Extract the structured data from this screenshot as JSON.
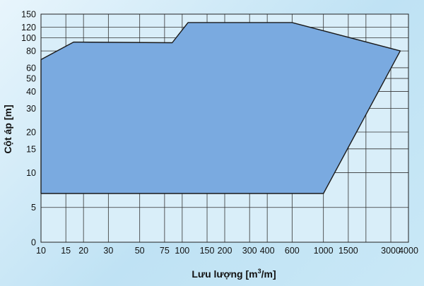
{
  "chart_data": {
    "type": "area",
    "xlabel": "Lưu lượng [m",
    "xlabel_sup": "3",
    "xlabel_end": "/m]",
    "ylabel": "Cột áp [m]",
    "x_scale": "log",
    "y_scale": "piecewise",
    "grid": true,
    "legend": "none",
    "x_ticks": [
      10,
      15,
      20,
      30,
      50,
      75,
      100,
      150,
      200,
      300,
      400,
      600,
      1000,
      1500,
      3000,
      4000
    ],
    "x_tick_labels": [
      "10",
      "15",
      "20",
      "30",
      "50",
      "75",
      "100",
      "150",
      "200",
      "300",
      "400",
      "600",
      "1000",
      "1500",
      "3000",
      "4000"
    ],
    "x_grid": [
      10,
      15,
      20,
      30,
      50,
      75,
      100,
      150,
      200,
      300,
      400,
      600,
      1000,
      1500,
      2000,
      3000,
      4000
    ],
    "y_ticks": [
      0,
      5,
      10,
      15,
      20,
      30,
      40,
      50,
      60,
      80,
      100,
      120,
      150
    ],
    "y_tick_labels": [
      "0",
      "5",
      "10",
      "15",
      "20",
      "30",
      "40",
      "50",
      "60",
      "80",
      "100",
      "120",
      "150"
    ],
    "series": [
      {
        "values": [
          [
            10,
            69
          ],
          [
            17,
            93
          ],
          [
            85,
            92
          ],
          [
            110,
            130
          ],
          [
            600,
            130
          ],
          [
            3500,
            80
          ],
          [
            1000,
            7
          ],
          [
            10,
            7
          ]
        ]
      }
    ],
    "colors": {
      "fill": "#7aaae0",
      "stroke": "#1a1a1a",
      "grid": "#333333",
      "plot_bg": "#d9eef9"
    }
  }
}
